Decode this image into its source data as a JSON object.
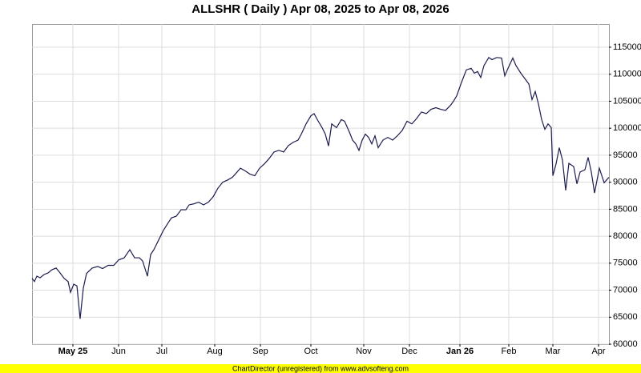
{
  "chart_data": {
    "type": "line",
    "title": "ALLSHR ( Daily ) Apr 08, 2025 to Apr 08, 2026",
    "footer": "ChartDirector (unregistered) from www.advsofteng.com",
    "x": [
      0,
      3,
      6,
      10,
      15,
      20,
      25,
      30,
      35,
      40,
      45,
      48,
      52,
      56,
      60,
      64,
      68,
      75,
      82,
      88,
      95,
      102,
      108,
      115,
      122,
      128,
      134,
      138,
      144,
      148,
      152,
      158,
      164,
      170,
      174,
      180,
      186,
      192,
      196,
      202,
      208,
      214,
      220,
      226,
      232,
      238,
      244,
      250,
      256,
      260,
      266,
      272,
      278,
      284,
      290,
      296,
      302,
      308,
      314,
      320,
      326,
      332,
      336,
      342,
      348,
      352,
      356,
      362,
      366,
      370,
      374,
      380,
      386,
      390,
      396,
      400,
      404,
      408,
      412,
      416,
      420,
      424,
      428,
      432,
      438,
      444,
      450,
      456,
      462,
      468,
      474,
      480,
      486,
      492,
      498,
      504,
      510,
      516,
      522,
      526,
      530,
      536,
      542,
      548,
      552,
      556,
      560,
      564,
      570,
      574,
      580,
      586,
      590,
      594,
      600,
      604,
      610,
      616,
      620,
      624,
      628,
      632,
      636,
      640,
      644,
      648,
      650,
      654,
      658,
      662,
      666,
      670,
      676,
      680,
      684,
      690,
      694,
      698,
      702,
      708,
      714,
      720
    ],
    "series": [
      {
        "name": "ALLSHR",
        "color": "#1c1c50",
        "values": [
          72200,
          71600,
          72600,
          72300,
          72900,
          73200,
          73800,
          74100,
          73200,
          72200,
          71600,
          69600,
          71100,
          70800,
          64700,
          70400,
          73100,
          74100,
          74400,
          74000,
          74600,
          74600,
          75600,
          76000,
          77500,
          76000,
          76000,
          75400,
          72600,
          76600,
          77500,
          79300,
          81100,
          82500,
          83400,
          83700,
          84900,
          84900,
          85800,
          86000,
          86300,
          85800,
          86300,
          87300,
          88900,
          90000,
          90400,
          90900,
          91900,
          92600,
          92100,
          91500,
          91200,
          92600,
          93400,
          94400,
          95600,
          95900,
          95600,
          96800,
          97400,
          97800,
          98900,
          100800,
          102300,
          102700,
          101600,
          100100,
          98900,
          96700,
          100800,
          100100,
          101600,
          101300,
          99300,
          97800,
          97100,
          95900,
          97800,
          98900,
          98300,
          97100,
          98600,
          96400,
          97800,
          98300,
          97800,
          98600,
          99600,
          101300,
          100800,
          101800,
          103000,
          102700,
          103500,
          103800,
          103500,
          103300,
          104200,
          105000,
          106000,
          108500,
          110800,
          111100,
          110200,
          110500,
          109400,
          111600,
          113100,
          112700,
          113100,
          113000,
          109700,
          111100,
          113000,
          111600,
          110200,
          109000,
          108200,
          105300,
          106800,
          104500,
          101600,
          99800,
          100800,
          100100,
          91200,
          93400,
          96400,
          94100,
          88500,
          93500,
          92900,
          89700,
          91900,
          92300,
          94600,
          91900,
          88000,
          92600,
          89900,
          90900
        ]
      }
    ],
    "xlim": [
      0,
      720
    ],
    "xticks": [
      {
        "value": 51,
        "label": "May 25"
      },
      {
        "value": 108,
        "label": "Jun"
      },
      {
        "value": 162,
        "label": "Jul"
      },
      {
        "value": 228,
        "label": "Aug"
      },
      {
        "value": 285,
        "label": "Sep"
      },
      {
        "value": 348,
        "label": "Oct"
      },
      {
        "value": 414,
        "label": "Nov"
      },
      {
        "value": 471,
        "label": "Dec"
      },
      {
        "value": 534,
        "label": "Jan 26"
      },
      {
        "value": 595,
        "label": "Feb"
      },
      {
        "value": 650,
        "label": "Mar"
      },
      {
        "value": 707,
        "label": "Apr"
      }
    ],
    "ylim": [
      60000,
      119300
    ],
    "yticks": [
      60000,
      65000,
      70000,
      75000,
      80000,
      85000,
      90000,
      95000,
      100000,
      105000,
      110000,
      115000
    ],
    "grid": true
  }
}
